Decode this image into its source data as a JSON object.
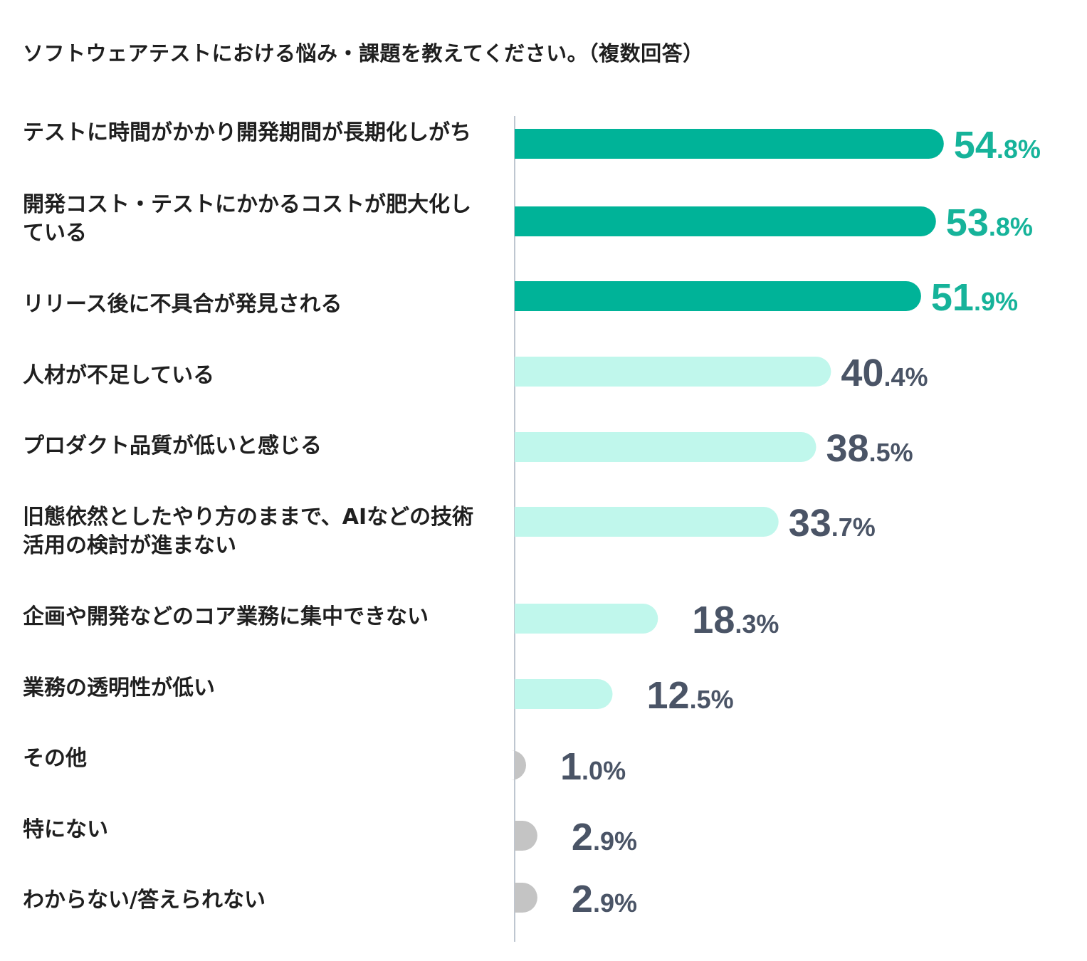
{
  "chart_data": {
    "type": "bar",
    "orientation": "horizontal",
    "title": "ソフトウェアテストにおける悩み・課題を教えてください。（複数回答）",
    "categories": [
      "テストに時間がかかり開発期間が長期化しがち",
      "開発コスト・テストにかかるコストが肥大化している",
      "リリース後に不具合が発見される",
      "人材が不足している",
      "プロダクト品質が低いと感じる",
      "旧態依然としたやり方のままで、AIなどの技術活用の検討が進まない",
      "企画や開発などのコア業務に集中できない",
      "業務の透明性が低い",
      "その他",
      "特にない",
      "わからない/答えられない"
    ],
    "category_lines": [
      [
        "テストに時間がかかり開発期間が長期化しがち"
      ],
      [
        "開発コスト・テストにかかるコストが肥大化し",
        "ている"
      ],
      [
        "リリース後に不具合が発見される"
      ],
      [
        "人材が不足している"
      ],
      [
        "プロダクト品質が低いと感じる"
      ],
      [
        "旧態依然としたやり方のままで、AIなどの技術",
        "活用の検討が進まない"
      ],
      [
        "企画や開発などのコア業務に集中できない"
      ],
      [
        "業務の透明性が低い"
      ],
      [
        "その他"
      ],
      [
        "特にない"
      ],
      [
        "わからない/答えられない"
      ]
    ],
    "values": [
      54.8,
      53.8,
      51.9,
      40.4,
      38.5,
      33.7,
      18.3,
      12.5,
      1.0,
      2.9,
      2.9
    ],
    "value_labels": [
      {
        "int": "54",
        "dec": ".8%"
      },
      {
        "int": "53",
        "dec": ".8%"
      },
      {
        "int": "51",
        "dec": ".9%"
      },
      {
        "int": "40",
        "dec": ".4%"
      },
      {
        "int": "38",
        "dec": ".5%"
      },
      {
        "int": "33",
        "dec": ".7%"
      },
      {
        "int": "18",
        "dec": ".3%"
      },
      {
        "int": "12",
        "dec": ".5%"
      },
      {
        "int": "1",
        "dec": ".0%"
      },
      {
        "int": "2",
        "dec": ".9%"
      },
      {
        "int": "2",
        "dec": ".9%"
      }
    ],
    "colors": {
      "top3": "#00b398",
      "mid": "#c0f7ec",
      "minor": "#c4c4c4",
      "top3_label": "#16b39a",
      "label": "#4a5466",
      "axis": "#a9b4c0"
    },
    "color_groups": [
      "top3",
      "top3",
      "top3",
      "mid",
      "mid",
      "mid",
      "mid",
      "mid",
      "minor",
      "minor",
      "minor"
    ],
    "xlim": [
      0,
      100
    ],
    "grid": false,
    "legend": "none"
  }
}
